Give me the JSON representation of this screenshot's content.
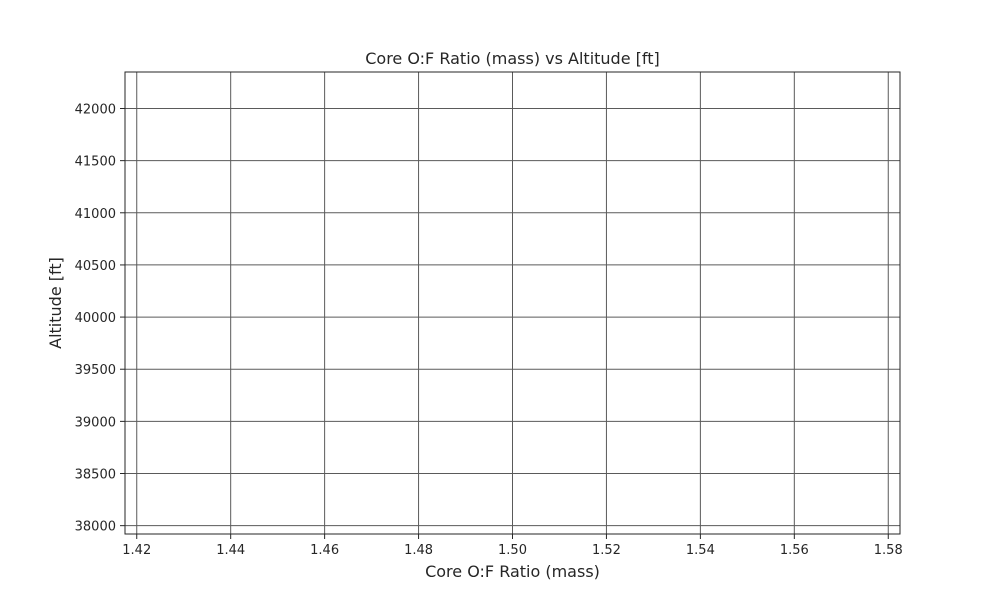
{
  "chart_data": {
    "type": "line",
    "title": "Core O:F Ratio (mass) vs Altitude [ft]",
    "xlabel": "Core O:F Ratio (mass)",
    "ylabel": "Altitude [ft]",
    "xlim": [
      1.4175,
      1.5825
    ],
    "ylim": [
      37920,
      42350
    ],
    "x_ticks": [
      1.42,
      1.44,
      1.46,
      1.48,
      1.5,
      1.52,
      1.54,
      1.56,
      1.58
    ],
    "x_tick_labels": [
      "1.42",
      "1.44",
      "1.46",
      "1.48",
      "1.50",
      "1.52",
      "1.54",
      "1.56",
      "1.58"
    ],
    "y_ticks": [
      38000,
      38500,
      39000,
      39500,
      40000,
      40500,
      41000,
      41500,
      42000
    ],
    "y_tick_labels": [
      "38000",
      "38500",
      "39000",
      "39500",
      "40000",
      "40500",
      "41000",
      "41500",
      "42000"
    ],
    "grid": true,
    "series": [],
    "colors": {
      "grid": "#5a5a5a",
      "axes": "#262626",
      "background": "#ffffff"
    }
  }
}
